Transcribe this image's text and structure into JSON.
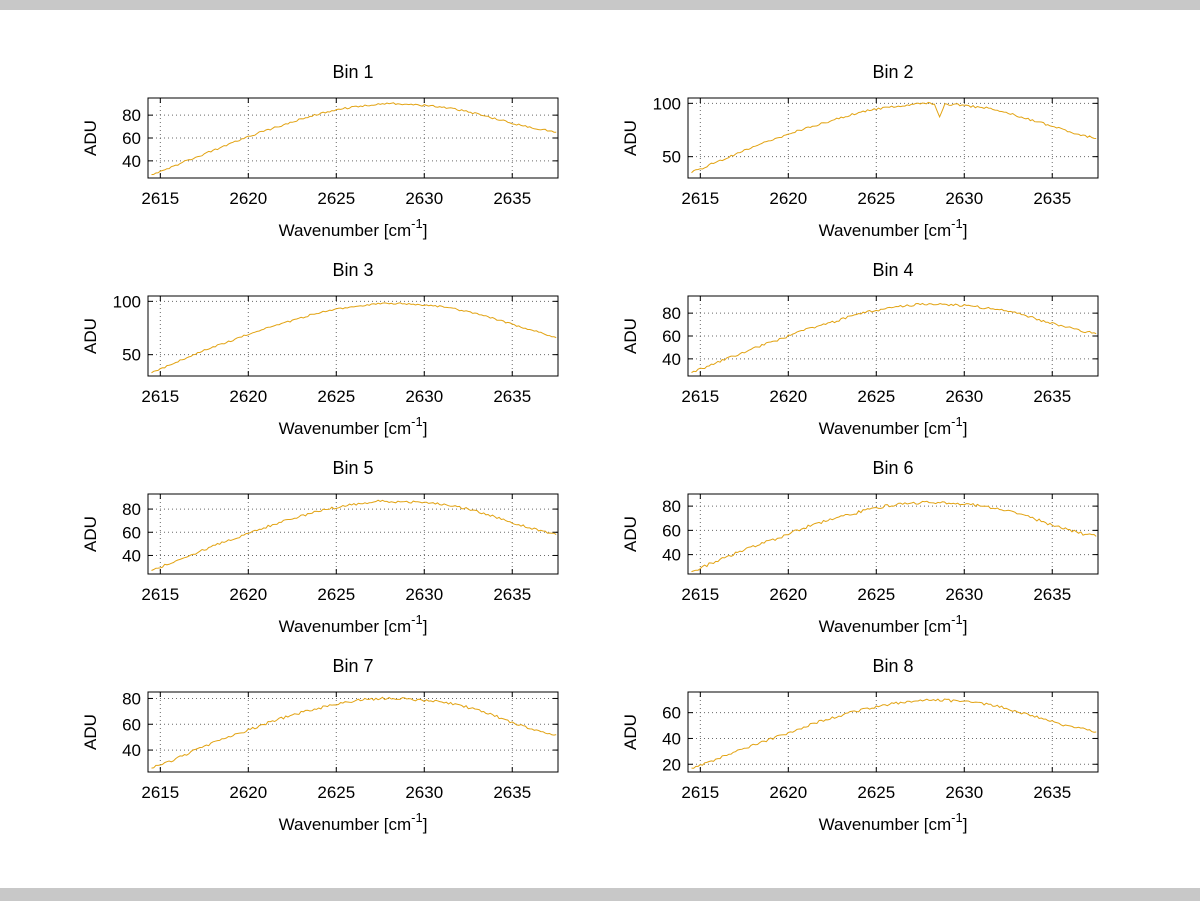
{
  "window": {
    "background": "#c8c8c8",
    "figure_background": "#ffffff"
  },
  "chart_data": {
    "type": "line",
    "layout": {
      "rows": 4,
      "cols": 2
    },
    "xlabel": {
      "text": "Wavenumber [cm",
      "sup": "-1",
      "close": "]"
    },
    "ylabel": "ADU",
    "x_ticks": [
      2615,
      2620,
      2625,
      2630,
      2635
    ],
    "x_range": [
      2614.3,
      2637.6
    ],
    "grid": "dotted",
    "grid_color": "#6a6a6a",
    "axis_color": "#000000",
    "line_color": "#e2a313",
    "x": [
      2614.5,
      2615.5,
      2616.5,
      2617.5,
      2618.5,
      2619.5,
      2620.5,
      2621.5,
      2622.5,
      2623.5,
      2624.5,
      2625.5,
      2626.5,
      2627.5,
      2628.5,
      2629.5,
      2630.5,
      2631.5,
      2632.5,
      2633.5,
      2634.5,
      2635.5,
      2636.5,
      2637.5
    ],
    "charts": [
      {
        "title": "Bin 1",
        "y_ticks": [
          40,
          60,
          80
        ],
        "y_range": [
          25,
          95
        ],
        "noise": 0.8,
        "values": [
          28,
          34,
          40,
          46,
          52,
          58,
          64,
          69,
          74,
          79,
          83,
          86,
          88,
          90,
          90,
          89,
          88,
          86,
          83,
          79,
          75,
          71,
          68,
          65
        ]
      },
      {
        "title": "Bin 2",
        "y_ticks": [
          50,
          100
        ],
        "y_range": [
          30,
          105
        ],
        "noise": 1.0,
        "x": [
          2614.5,
          2615.5,
          2616.5,
          2617.5,
          2618.5,
          2619.5,
          2620.5,
          2621.5,
          2622.5,
          2623.5,
          2624.5,
          2625.5,
          2626.5,
          2627.5,
          2628.3,
          2628.6,
          2628.9,
          2629.5,
          2630.5,
          2631.5,
          2632.5,
          2633.5,
          2634.5,
          2635.5,
          2636.5,
          2637.5
        ],
        "values": [
          35,
          42,
          49,
          56,
          62,
          68,
          74,
          79,
          84,
          89,
          93,
          96,
          98,
          100,
          100,
          88,
          99,
          99,
          97,
          95,
          91,
          86,
          81,
          76,
          71,
          67
        ]
      },
      {
        "title": "Bin 3",
        "y_ticks": [
          50,
          100
        ],
        "y_range": [
          30,
          105
        ],
        "noise": 0.8,
        "values": [
          33,
          40,
          47,
          54,
          60,
          66,
          72,
          77,
          82,
          87,
          91,
          94,
          96,
          98,
          98,
          97,
          96,
          94,
          90,
          86,
          81,
          76,
          71,
          66
        ]
      },
      {
        "title": "Bin 4",
        "y_ticks": [
          40,
          60,
          80
        ],
        "y_range": [
          25,
          95
        ],
        "noise": 1.0,
        "values": [
          28,
          34,
          40,
          46,
          52,
          57,
          63,
          68,
          72,
          77,
          81,
          84,
          86,
          88,
          88,
          87,
          86,
          84,
          82,
          78,
          73,
          69,
          65,
          62
        ]
      },
      {
        "title": "Bin 5",
        "y_ticks": [
          40,
          60,
          80
        ],
        "y_range": [
          24,
          93
        ],
        "noise": 1.0,
        "values": [
          27,
          33,
          39,
          45,
          51,
          56,
          62,
          67,
          72,
          76,
          80,
          83,
          85,
          87,
          86,
          86,
          85,
          83,
          80,
          76,
          71,
          66,
          62,
          58
        ]
      },
      {
        "title": "Bin 6",
        "y_ticks": [
          40,
          60,
          80
        ],
        "y_range": [
          24,
          90
        ],
        "noise": 1.2,
        "values": [
          26,
          32,
          38,
          44,
          49,
          54,
          60,
          65,
          69,
          73,
          77,
          80,
          82,
          83,
          83,
          82,
          81,
          79,
          76,
          72,
          67,
          62,
          58,
          55
        ]
      },
      {
        "title": "Bin 7",
        "y_ticks": [
          40,
          60,
          80
        ],
        "y_range": [
          23,
          85
        ],
        "noise": 1.0,
        "values": [
          26,
          31,
          37,
          43,
          48,
          53,
          58,
          63,
          67,
          71,
          74,
          77,
          79,
          80,
          80,
          79,
          78,
          76,
          73,
          69,
          64,
          59,
          55,
          52
        ]
      },
      {
        "title": "Bin 8",
        "y_ticks": [
          20,
          40,
          60
        ],
        "y_range": [
          14,
          76
        ],
        "noise": 1.0,
        "values": [
          17,
          22,
          27,
          32,
          37,
          42,
          47,
          52,
          56,
          60,
          63,
          66,
          68,
          70,
          70,
          69,
          68,
          66,
          63,
          59,
          55,
          51,
          48,
          45
        ]
      }
    ]
  }
}
